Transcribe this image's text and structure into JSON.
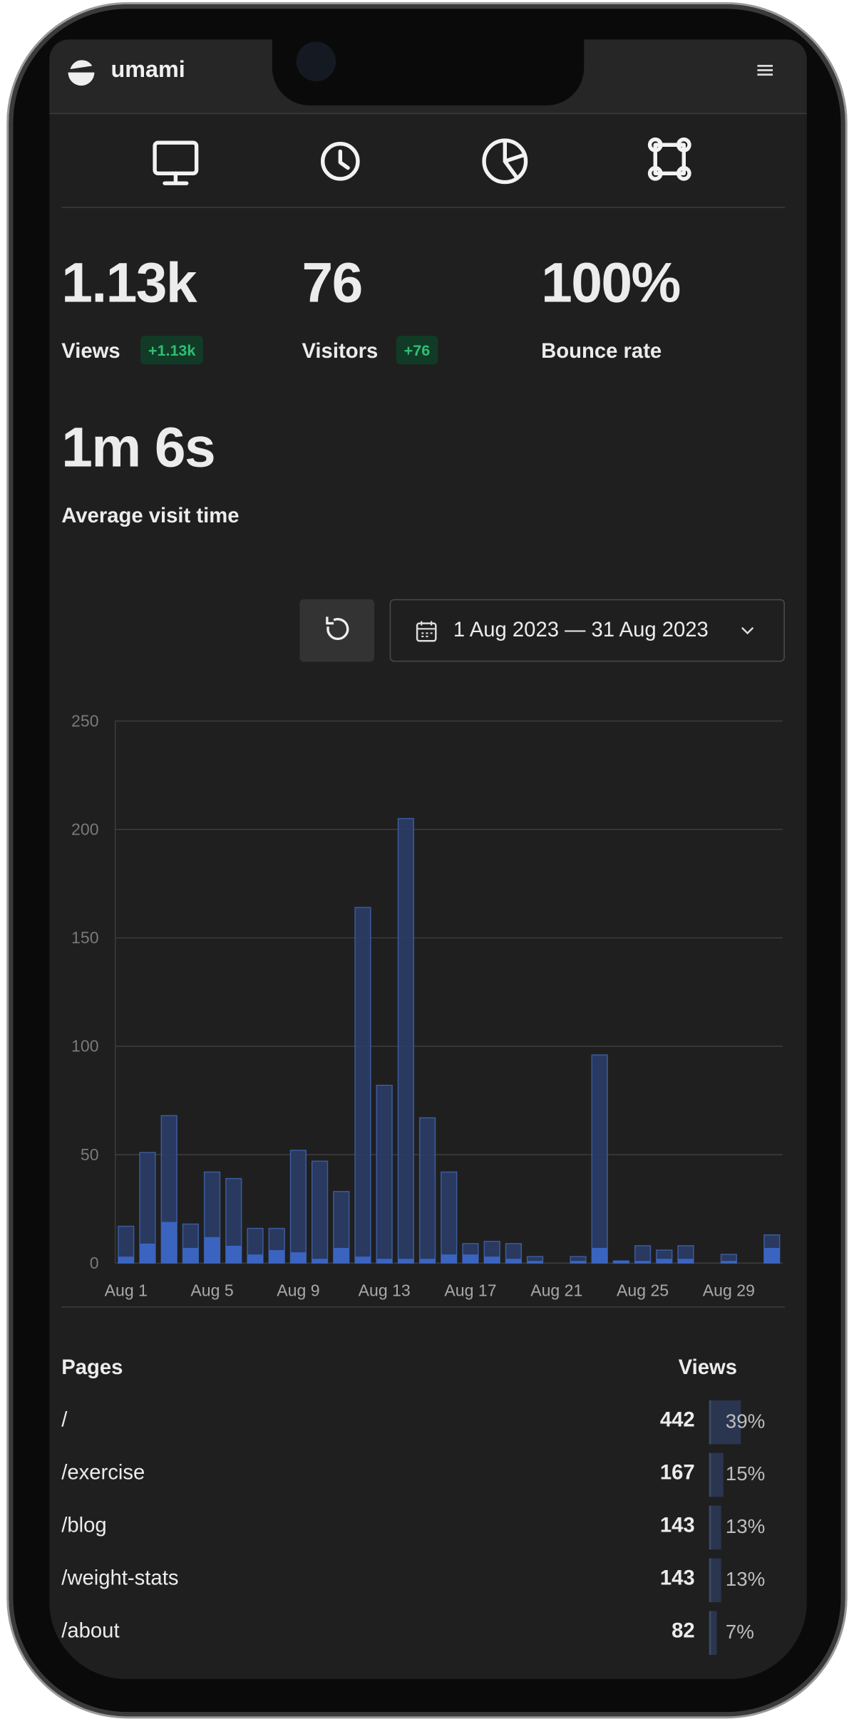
{
  "header": {
    "brand": "umami"
  },
  "metrics": [
    {
      "value": "1.13k",
      "label": "Views",
      "change": "+1.13k"
    },
    {
      "value": "76",
      "label": "Visitors",
      "change": "+76"
    },
    {
      "value": "100%",
      "label": "Bounce rate"
    },
    {
      "value": "1m 6s",
      "label": "Average visit time"
    }
  ],
  "date_range": "1 Aug 2023 — 31 Aug 2023",
  "chart_data": {
    "type": "bar",
    "barmode": "overlay",
    "categories": [
      "Aug 1",
      null,
      null,
      null,
      "Aug 5",
      null,
      null,
      null,
      "Aug 9",
      null,
      null,
      null,
      "Aug 13",
      null,
      null,
      null,
      "Aug 17",
      null,
      null,
      null,
      "Aug 21",
      null,
      null,
      null,
      "Aug 25",
      null,
      null,
      null,
      "Aug 29",
      null,
      null
    ],
    "series": [
      {
        "color": "#2a3c66",
        "values": [
          17,
          51,
          68,
          18,
          42,
          39,
          16,
          16,
          52,
          47,
          33,
          164,
          82,
          205,
          67,
          42,
          9,
          10,
          9,
          3,
          0,
          3,
          96,
          1,
          8,
          6,
          8,
          0,
          4,
          0,
          13
        ]
      },
      {
        "color": "#3d6cd0",
        "values": [
          3,
          9,
          19,
          7,
          12,
          8,
          4,
          6,
          5,
          2,
          7,
          3,
          2,
          2,
          2,
          4,
          4,
          3,
          2,
          1,
          0,
          1,
          7,
          1,
          1,
          2,
          2,
          0,
          1,
          0,
          7
        ]
      }
    ],
    "ylim": [
      0,
      250
    ],
    "yticks": [
      0,
      50,
      100,
      150,
      200,
      250
    ],
    "grid": true
  },
  "table": {
    "headers": [
      "Pages",
      "Views"
    ],
    "rows": [
      {
        "page": "/",
        "views": 442,
        "share": {
          "value": 39,
          "label": "39%"
        }
      },
      {
        "page": "/exercise",
        "views": 167,
        "share": {
          "value": 15,
          "label": "15%"
        }
      },
      {
        "page": "/blog",
        "views": 143,
        "share": {
          "value": 13,
          "label": "13%"
        }
      },
      {
        "page": "/weight-stats",
        "views": 143,
        "share": {
          "value": 13,
          "label": "13%"
        }
      },
      {
        "page": "/about",
        "views": 82,
        "share": {
          "value": 7,
          "label": "7%"
        }
      }
    ]
  }
}
